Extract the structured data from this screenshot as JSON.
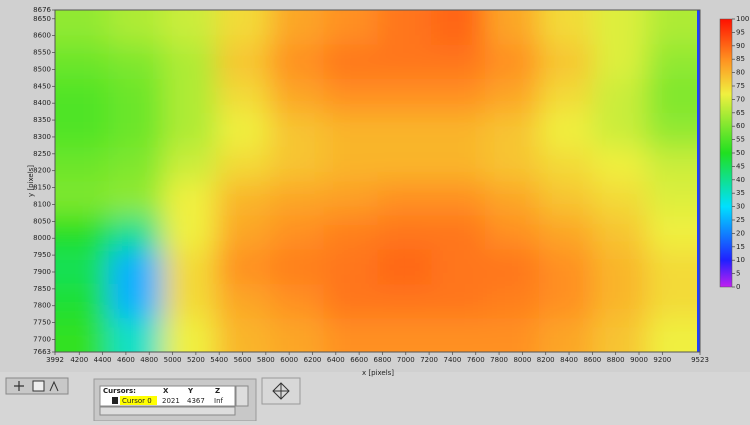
{
  "chart_data": {
    "type": "heatmap",
    "xlabel": "x [pixels]",
    "ylabel": "y [pixels]",
    "xlim": [
      3992,
      9523
    ],
    "ylim": [
      7663,
      8676
    ],
    "xticks": [
      3992,
      4200,
      4400,
      4600,
      4800,
      5000,
      5200,
      5400,
      5600,
      5800,
      6000,
      6200,
      6400,
      6600,
      6800,
      7000,
      7200,
      7400,
      7600,
      7800,
      8000,
      8200,
      8400,
      8600,
      8800,
      9000,
      9200,
      9523
    ],
    "yticks": [
      7663,
      7700,
      7750,
      7800,
      7850,
      7900,
      7950,
      8000,
      8050,
      8100,
      8150,
      8200,
      8250,
      8300,
      8350,
      8400,
      8450,
      8500,
      8550,
      8600,
      8650,
      8676
    ],
    "values": [
      [
        52,
        35,
        72,
        80,
        82,
        85,
        85,
        85,
        85,
        82,
        78,
        72
      ],
      [
        48,
        25,
        75,
        82,
        85,
        88,
        88,
        88,
        87,
        85,
        80,
        75
      ],
      [
        45,
        25,
        75,
        85,
        87,
        88,
        90,
        88,
        88,
        85,
        80,
        75
      ],
      [
        50,
        40,
        72,
        82,
        85,
        87,
        88,
        88,
        85,
        82,
        78,
        72
      ],
      [
        60,
        62,
        72,
        80,
        82,
        83,
        85,
        85,
        82,
        78,
        75,
        70
      ],
      [
        58,
        60,
        68,
        75,
        78,
        80,
        80,
        80,
        78,
        75,
        72,
        68
      ],
      [
        55,
        58,
        65,
        72,
        78,
        80,
        80,
        80,
        78,
        72,
        68,
        62
      ],
      [
        55,
        58,
        65,
        75,
        82,
        85,
        85,
        85,
        82,
        75,
        68,
        60
      ],
      [
        58,
        60,
        65,
        78,
        85,
        88,
        88,
        88,
        85,
        78,
        70,
        62
      ],
      [
        62,
        65,
        68,
        75,
        82,
        85,
        88,
        90,
        82,
        75,
        70,
        65
      ]
    ],
    "zlim": [
      0,
      100
    ],
    "zticks": [
      0,
      5,
      10,
      15,
      20,
      25,
      30,
      35,
      40,
      45,
      50,
      55,
      60,
      65,
      70,
      75,
      80,
      85,
      90,
      95,
      100
    ],
    "colormap": [
      {
        "value": 0,
        "color": "#c020f0"
      },
      {
        "value": 10,
        "color": "#2020ff"
      },
      {
        "value": 30,
        "color": "#00e0ff"
      },
      {
        "value": 50,
        "color": "#20e020"
      },
      {
        "value": 72,
        "color": "#f0f040"
      },
      {
        "value": 85,
        "color": "#ff9020"
      },
      {
        "value": 100,
        "color": "#ff1000"
      }
    ]
  },
  "cursor_panel": {
    "columns": [
      "Cursors:",
      "X",
      "Y",
      "Z"
    ],
    "rows": [
      [
        "Cursor 0",
        2021,
        4367,
        "Inf"
      ]
    ]
  }
}
